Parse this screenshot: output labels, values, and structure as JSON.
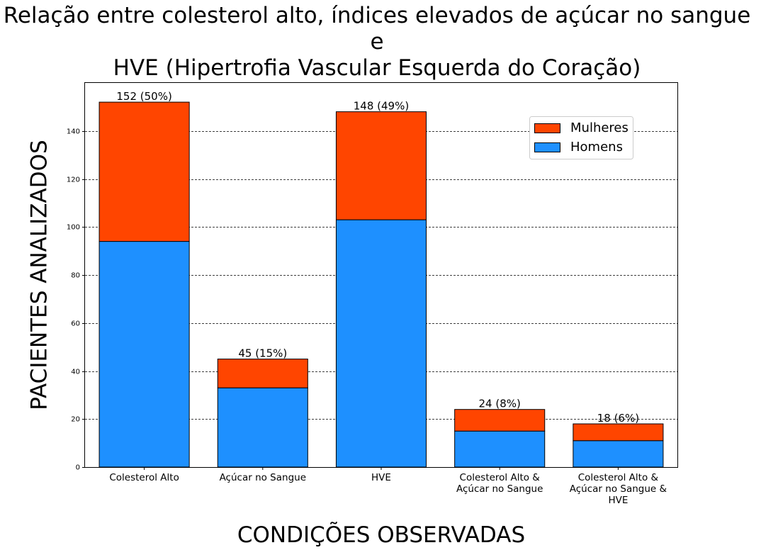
{
  "chart_data": {
    "type": "bar",
    "stacked": true,
    "title_lines": [
      "Relação entre colesterol alto, índices elevados de açúcar no sangue e",
      "HVE (Hipertrofia Vascular Esquerda do Coração)"
    ],
    "xlabel": "CONDIÇÕES OBSERVADAS",
    "ylabel": "PACIENTES ANALIZADOS",
    "categories": [
      [
        "Colesterol Alto"
      ],
      [
        "Açúcar no Sangue"
      ],
      [
        "HVE"
      ],
      [
        "Colesterol Alto &",
        "Açúcar no Sangue"
      ],
      [
        "Colesterol Alto &",
        "Açúcar no Sangue &",
        "HVE"
      ]
    ],
    "series": [
      {
        "name": "Homens",
        "color": "#1e90ff",
        "values": [
          94,
          33,
          103,
          15,
          11
        ]
      },
      {
        "name": "Mulheres",
        "color": "#ff4500",
        "values": [
          58,
          12,
          45,
          9,
          7
        ]
      }
    ],
    "totals_labels": [
      "152 (50%)",
      "45 (15%)",
      "148 (49%)",
      "24 (8%)",
      "18 (6%)"
    ],
    "ylim": [
      0,
      160
    ],
    "yticks": [
      0,
      20,
      40,
      60,
      80,
      100,
      120,
      140
    ],
    "grid": "horizontal dashed",
    "legend_position": "top-right",
    "legend_order": [
      "Mulheres",
      "Homens"
    ]
  }
}
